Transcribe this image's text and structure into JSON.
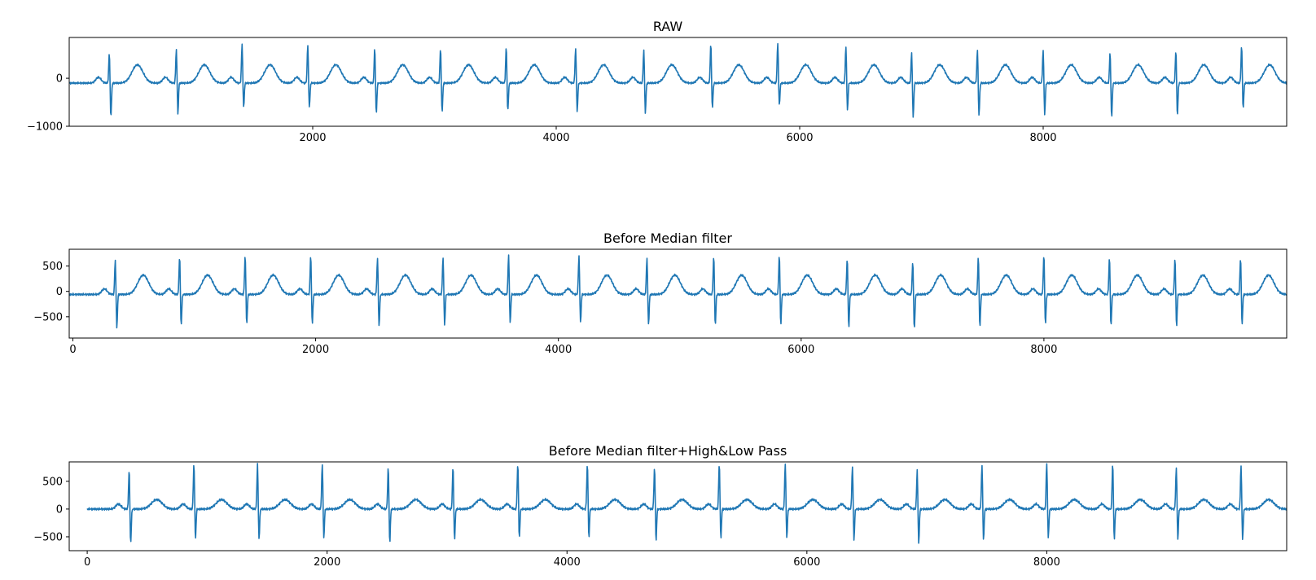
{
  "chart_data": [
    {
      "type": "line",
      "title": "RAW",
      "xlim": [
        0,
        10000
      ],
      "ylim": [
        -1000,
        850
      ],
      "xticks": [
        2000,
        4000,
        6000,
        8000
      ],
      "yticks": [
        0,
        -1000
      ],
      "line_color": "#1f77b4",
      "series": [
        {
          "x_start": 0,
          "x_end": 10000,
          "baseline": -100,
          "p_amp": 120,
          "t_amp": 380,
          "beats": [
            {
              "x": 330,
              "peak": 550,
              "trough": -850
            },
            {
              "x": 880,
              "peak": 640,
              "trough": -770
            },
            {
              "x": 1420,
              "peak": 740,
              "trough": -650
            },
            {
              "x": 1960,
              "peak": 720,
              "trough": -650
            },
            {
              "x": 2510,
              "peak": 660,
              "trough": -760
            },
            {
              "x": 3050,
              "peak": 650,
              "trough": -740
            },
            {
              "x": 3590,
              "peak": 680,
              "trough": -720
            },
            {
              "x": 4160,
              "peak": 660,
              "trough": -720
            },
            {
              "x": 4720,
              "peak": 620,
              "trough": -750
            },
            {
              "x": 5270,
              "peak": 740,
              "trough": -660
            },
            {
              "x": 5820,
              "peak": 770,
              "trough": -600
            },
            {
              "x": 6380,
              "peak": 700,
              "trough": -700
            },
            {
              "x": 6920,
              "peak": 560,
              "trough": -850
            },
            {
              "x": 7460,
              "peak": 620,
              "trough": -820
            },
            {
              "x": 8000,
              "peak": 620,
              "trough": -780
            },
            {
              "x": 8550,
              "peak": 560,
              "trough": -850
            },
            {
              "x": 9090,
              "peak": 600,
              "trough": -820
            },
            {
              "x": 9630,
              "peak": 700,
              "trough": -660
            }
          ]
        }
      ]
    },
    {
      "type": "line",
      "title": "Before Median filter",
      "xlim": [
        -30,
        10000
      ],
      "ylim": [
        -920,
        830
      ],
      "xticks": [
        0,
        2000,
        4000,
        6000,
        8000
      ],
      "yticks": [
        500,
        0,
        -500
      ],
      "line_color": "#1f77b4",
      "series": [
        {
          "x_start": -30,
          "x_end": 10000,
          "baseline": -60,
          "p_amp": 110,
          "t_amp": 380,
          "beats": [
            {
              "x": 350,
              "peak": 650,
              "trough": -750
            },
            {
              "x": 880,
              "peak": 720,
              "trough": -700
            },
            {
              "x": 1420,
              "peak": 740,
              "trough": -680
            },
            {
              "x": 1960,
              "peak": 730,
              "trough": -680
            },
            {
              "x": 2510,
              "peak": 690,
              "trough": -720
            },
            {
              "x": 3050,
              "peak": 710,
              "trough": -700
            },
            {
              "x": 3590,
              "peak": 740,
              "trough": -660
            },
            {
              "x": 4170,
              "peak": 730,
              "trough": -650
            },
            {
              "x": 4730,
              "peak": 700,
              "trough": -700
            },
            {
              "x": 5280,
              "peak": 720,
              "trough": -700
            },
            {
              "x": 5820,
              "peak": 740,
              "trough": -680
            },
            {
              "x": 6380,
              "peak": 680,
              "trough": -740
            },
            {
              "x": 6920,
              "peak": 620,
              "trough": -780
            },
            {
              "x": 7460,
              "peak": 700,
              "trough": -740
            },
            {
              "x": 8000,
              "peak": 740,
              "trough": -680
            },
            {
              "x": 8540,
              "peak": 700,
              "trough": -710
            },
            {
              "x": 9080,
              "peak": 680,
              "trough": -720
            },
            {
              "x": 9620,
              "peak": 690,
              "trough": -700
            }
          ]
        }
      ]
    },
    {
      "type": "line",
      "title": "Before Median filter+High&Low Pass",
      "xlim": [
        -150,
        10000
      ],
      "ylim": [
        -750,
        850
      ],
      "xticks": [
        0,
        2000,
        4000,
        6000,
        8000
      ],
      "yticks": [
        500,
        0,
        -500
      ],
      "line_color": "#1f77b4",
      "series": [
        {
          "x_start": 0,
          "x_end": 10000,
          "baseline": 0,
          "p_amp": 90,
          "t_amp": 170,
          "beats": [
            {
              "x": 350,
              "peak": 750,
              "trough": -650
            },
            {
              "x": 890,
              "peak": 850,
              "trough": -580
            },
            {
              "x": 1420,
              "peak": 850,
              "trough": -580
            },
            {
              "x": 1960,
              "peak": 850,
              "trough": -570
            },
            {
              "x": 2510,
              "peak": 780,
              "trough": -640
            },
            {
              "x": 3050,
              "peak": 800,
              "trough": -580
            },
            {
              "x": 3590,
              "peak": 850,
              "trough": -560
            },
            {
              "x": 4170,
              "peak": 850,
              "trough": -560
            },
            {
              "x": 4730,
              "peak": 780,
              "trough": -610
            },
            {
              "x": 5270,
              "peak": 850,
              "trough": -570
            },
            {
              "x": 5820,
              "peak": 850,
              "trough": -560
            },
            {
              "x": 6380,
              "peak": 800,
              "trough": -590
            },
            {
              "x": 6920,
              "peak": 740,
              "trough": -650
            },
            {
              "x": 7460,
              "peak": 830,
              "trough": -610
            },
            {
              "x": 8000,
              "peak": 850,
              "trough": -560
            },
            {
              "x": 8550,
              "peak": 850,
              "trough": -580
            },
            {
              "x": 9080,
              "peak": 780,
              "trough": -590
            },
            {
              "x": 9620,
              "peak": 820,
              "trough": -580
            }
          ]
        }
      ]
    }
  ]
}
